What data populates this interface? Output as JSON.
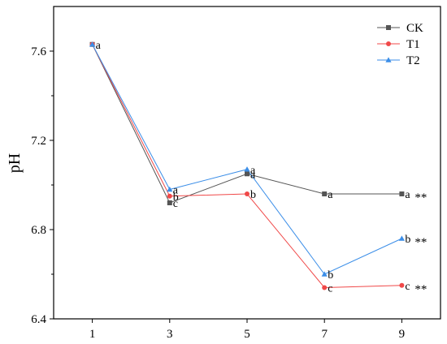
{
  "chart_data": {
    "type": "line",
    "title": "",
    "xlabel": "",
    "ylabel": "pH",
    "x": [
      1,
      3,
      5,
      7,
      9
    ],
    "xlim": [
      0,
      10
    ],
    "ylim": [
      6.4,
      7.8
    ],
    "xticks": [
      "1",
      "3",
      "5",
      "7",
      "9"
    ],
    "yticks": [
      "6.4",
      "6.8",
      "7.2",
      "7.6"
    ],
    "ytick_values": [
      6.4,
      6.8,
      7.2,
      7.6
    ],
    "grid": false,
    "legend_position": "top-right",
    "series": [
      {
        "name": "CK",
        "marker": "square",
        "color": "#555555",
        "values": [
          7.63,
          6.92,
          7.05,
          6.96,
          6.96
        ],
        "letters": [
          "a",
          "c",
          "a",
          "a",
          "a"
        ]
      },
      {
        "name": "T1",
        "marker": "circle",
        "color": "#f04848",
        "values": [
          7.63,
          6.95,
          6.96,
          6.54,
          6.55
        ],
        "letters": [
          "",
          "b",
          "b",
          "c",
          "c"
        ]
      },
      {
        "name": "T2",
        "marker": "triangle",
        "color": "#3b8ee8",
        "values": [
          7.63,
          6.98,
          7.07,
          6.6,
          6.76
        ],
        "letters": [
          "",
          "a",
          "a",
          "b",
          "b"
        ]
      }
    ],
    "annotations": [
      {
        "x": 9,
        "y": 6.96,
        "text": "**"
      },
      {
        "x": 9,
        "y": 6.76,
        "text": "**"
      },
      {
        "x": 9,
        "y": 6.55,
        "text": "**"
      }
    ]
  }
}
